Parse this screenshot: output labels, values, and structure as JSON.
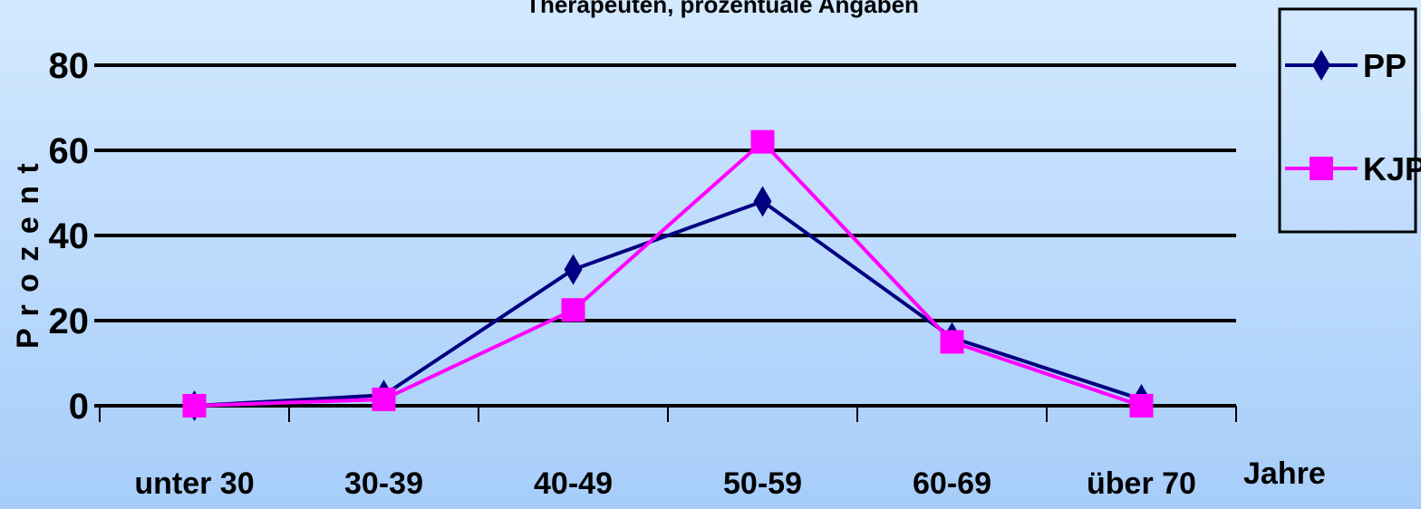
{
  "chart_data": {
    "type": "line",
    "title": "Therapeuten, prozentuale Angaben",
    "categories": [
      "unter 30",
      "30-39",
      "40-49",
      "50-59",
      "60-69",
      "über 70"
    ],
    "series": [
      {
        "name": "PP",
        "values": [
          0,
          2.5,
          32,
          48,
          16,
          1.5
        ],
        "color": "#000080",
        "marker": "diamond"
      },
      {
        "name": "KJP",
        "values": [
          0,
          1.5,
          22.5,
          62,
          15,
          0
        ],
        "color": "#ff00ff",
        "marker": "square"
      }
    ],
    "xlabel": "Jahre",
    "ylabel": "P r o z e n t",
    "ylim": [
      0,
      80
    ],
    "yticks": [
      0,
      20,
      40,
      60,
      80
    ],
    "grid": true,
    "legend": "right"
  }
}
